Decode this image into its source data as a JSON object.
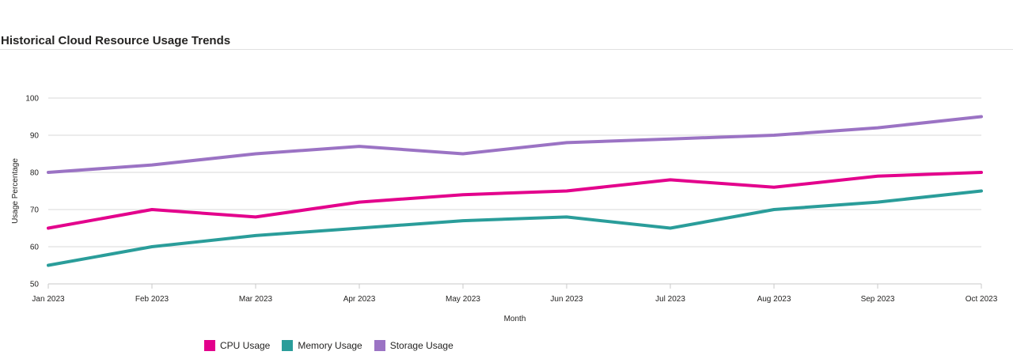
{
  "title": "Historical Cloud Resource Usage Trends",
  "chart_data": {
    "type": "line",
    "categories": [
      "Jan 2023",
      "Feb 2023",
      "Mar 2023",
      "Apr 2023",
      "May 2023",
      "Jun 2023",
      "Jul 2023",
      "Aug 2023",
      "Sep 2023",
      "Oct 2023"
    ],
    "series": [
      {
        "name": "CPU Usage",
        "color": "#e3008c",
        "values": [
          65,
          70,
          68,
          72,
          74,
          75,
          78,
          76,
          79,
          80
        ]
      },
      {
        "name": "Memory Usage",
        "color": "#2a9d9a",
        "values": [
          55,
          60,
          63,
          65,
          67,
          68,
          65,
          70,
          72,
          75
        ]
      },
      {
        "name": "Storage Usage",
        "color": "#9b73c4",
        "values": [
          80,
          82,
          85,
          87,
          85,
          88,
          89,
          90,
          92,
          95
        ]
      }
    ],
    "xlabel": "Month",
    "ylabel": "Usage Percentage",
    "ylim": [
      50,
      100
    ],
    "yticks": [
      50,
      60,
      70,
      80,
      90,
      100
    ],
    "grid": true,
    "legend": "bottom-left"
  }
}
